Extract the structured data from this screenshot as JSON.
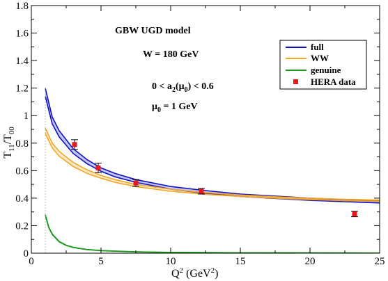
{
  "chart_data": {
    "type": "line",
    "xlim": [
      0,
      25
    ],
    "ylim": [
      0,
      1.8
    ],
    "xticks": [
      0,
      5,
      10,
      15,
      20,
      25
    ],
    "yticks": [
      0,
      0.2,
      0.4,
      0.6,
      0.8,
      1,
      1.2,
      1.4,
      1.6,
      1.8
    ],
    "xtick_labels": [
      "0",
      "5",
      "10",
      "15",
      "20",
      "25"
    ],
    "ytick_labels": [
      "0",
      "0.2",
      "0.4",
      "0.6",
      "0.8",
      "1",
      "1.2",
      "1.4",
      "1.6",
      "1.8"
    ],
    "xlabel": {
      "main": "Q",
      "sup": "2",
      "unit_open": " (GeV",
      "unit_sup": "2",
      "unit_close": ")"
    },
    "ylabel": {
      "main": "T",
      "sub1": "11",
      "slash": "/T",
      "sub2": "00"
    },
    "grid": false,
    "legend_position": "top-right",
    "annotations": {
      "model": "GBW UGD model",
      "energy": "W = 180 GeV",
      "range": {
        "prefix": "0 < a",
        "sub": "2",
        "mid": "(μ",
        "sub2": "0",
        "suffix": ") < 0.6"
      },
      "scale": {
        "prefix": "μ",
        "sub": "0",
        "suffix": " = 1 GeV"
      }
    },
    "series": [
      {
        "name": "full",
        "kind": "band",
        "color": "#1010c8",
        "x": [
          1,
          1.5,
          2,
          3,
          4,
          5,
          6,
          7.5,
          10,
          12.5,
          15,
          17.5,
          20,
          22.5,
          25
        ],
        "upper": [
          1.2,
          0.99,
          0.89,
          0.76,
          0.68,
          0.62,
          0.58,
          0.535,
          0.485,
          0.455,
          0.43,
          0.415,
          0.4,
          0.39,
          0.38
        ],
        "lower": [
          1.14,
          0.94,
          0.845,
          0.725,
          0.65,
          0.595,
          0.555,
          0.515,
          0.465,
          0.435,
          0.412,
          0.398,
          0.384,
          0.374,
          0.365
        ]
      },
      {
        "name": "WW",
        "kind": "band",
        "color": "#f5a623",
        "x": [
          1,
          1.5,
          2,
          3,
          4,
          5,
          6,
          7.5,
          10,
          12.5,
          15,
          17.5,
          20,
          22.5,
          25
        ],
        "upper": [
          0.91,
          0.8,
          0.74,
          0.66,
          0.605,
          0.565,
          0.535,
          0.5,
          0.465,
          0.44,
          0.423,
          0.41,
          0.4,
          0.392,
          0.386
        ],
        "lower": [
          0.87,
          0.765,
          0.705,
          0.63,
          0.58,
          0.545,
          0.515,
          0.484,
          0.45,
          0.428,
          0.412,
          0.4,
          0.39,
          0.382,
          0.376
        ]
      },
      {
        "name": "genuine",
        "kind": "band",
        "color": "#1a9a1a",
        "x": [
          1,
          1.25,
          1.5,
          2,
          2.5,
          3,
          4,
          5,
          7.5,
          10,
          15,
          20,
          25
        ],
        "upper": [
          0.28,
          0.19,
          0.14,
          0.085,
          0.058,
          0.043,
          0.027,
          0.019,
          0.01,
          0.006,
          0.003,
          0.002,
          0.001
        ],
        "lower": [
          0.275,
          0.185,
          0.136,
          0.082,
          0.056,
          0.041,
          0.026,
          0.018,
          0.009,
          0.0055,
          0.0028,
          0.0018,
          0.0009
        ]
      },
      {
        "name": "HERA data",
        "kind": "points",
        "color": "#e8181e",
        "x": [
          3.1,
          4.8,
          7.5,
          12.2,
          23.2
        ],
        "y": [
          0.79,
          0.62,
          0.51,
          0.45,
          0.285
        ],
        "err": [
          0.035,
          0.035,
          0.025,
          0.02,
          0.02
        ]
      }
    ]
  }
}
